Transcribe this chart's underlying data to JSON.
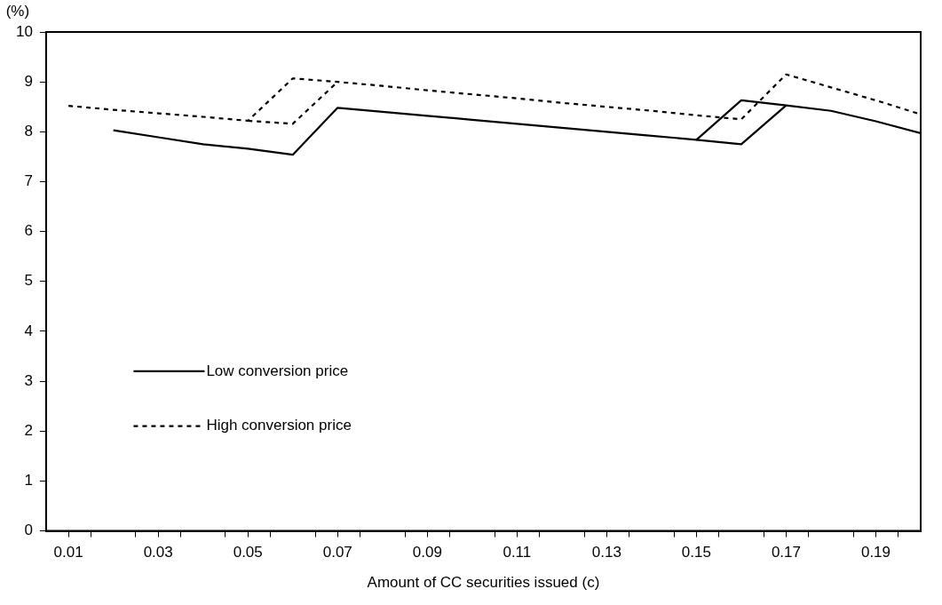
{
  "chart_data": {
    "type": "line",
    "xlabel": "Amount of CC securities issued (c)",
    "ylabel": "(%)",
    "xlim": [
      0.005,
      0.2
    ],
    "xticks": [
      0.01,
      {
        "value": 0.015,
        "label": null
      },
      0.03,
      {
        "value": 0.025,
        "label": null
      },
      0.05,
      {
        "value": 0.035,
        "label": null
      },
      0.07,
      {
        "value": 0.045,
        "label": null
      },
      0.09,
      {
        "value": 0.055,
        "label": null
      },
      0.11,
      {
        "value": 0.065,
        "label": null
      },
      0.13,
      {
        "value": 0.075,
        "label": null
      },
      0.15,
      {
        "value": 0.085,
        "label": null
      },
      0.17,
      {
        "value": 0.095,
        "label": null
      },
      0.19,
      {
        "value": 0.105,
        "label": null
      },
      {
        "value": 0.115,
        "label": null
      },
      {
        "value": 0.125,
        "label": null
      },
      {
        "value": 0.135,
        "label": null
      },
      {
        "value": 0.145,
        "label": null
      },
      {
        "value": 0.155,
        "label": null
      },
      {
        "value": 0.165,
        "label": null
      },
      {
        "value": 0.175,
        "label": null
      },
      {
        "value": 0.185,
        "label": null
      },
      {
        "value": 0.195,
        "label": null
      }
    ],
    "ylim": [
      0,
      10
    ],
    "yticks": [
      0,
      1,
      2,
      3,
      4,
      5,
      6,
      7,
      8,
      9,
      10
    ],
    "grid": false,
    "legend": "bottom left",
    "marker": "none",
    "series": [
      {
        "name": "Low conversion price",
        "color": "#000000",
        "line_style": "solid",
        "x": [
          0.02,
          0.03,
          0.04,
          0.05,
          0.06,
          0.07,
          0.08,
          0.09,
          0.1,
          0.11,
          0.12,
          0.13,
          0.14,
          0.15,
          0.16,
          0.17,
          0.18,
          0.19,
          0.2
        ],
        "values": [
          8.03,
          7.89,
          7.75,
          7.66,
          7.54,
          8.48,
          8.4,
          8.32,
          8.24,
          8.16,
          8.08,
          8.0,
          7.92,
          7.84,
          8.63,
          8.53,
          8.42,
          8.21,
          7.97
        ]
      },
      {
        "color": "#000000",
        "line_style": "solid",
        "x": [
          0.15,
          0.16,
          0.17
        ],
        "values": [
          7.84,
          7.75,
          8.53
        ]
      },
      {
        "name": "High conversion price",
        "color": "#000000",
        "line_style": "dashed",
        "x": [
          0.01,
          0.02,
          0.03,
          0.04,
          0.05,
          0.06,
          0.07,
          0.08,
          0.09,
          0.1,
          0.11,
          0.12,
          0.13,
          0.14,
          0.15,
          0.16,
          0.17,
          0.18,
          0.19,
          0.2
        ],
        "values": [
          8.52,
          8.44,
          8.37,
          8.3,
          8.22,
          9.07,
          9.0,
          8.92,
          8.83,
          8.75,
          8.67,
          8.58,
          8.5,
          8.42,
          8.33,
          8.25,
          9.15,
          8.89,
          8.63,
          8.35
        ]
      },
      {
        "color": "#000000",
        "line_style": "dashed",
        "x": [
          0.05,
          0.06,
          0.07
        ],
        "values": [
          8.22,
          8.16,
          9.0
        ]
      }
    ]
  }
}
